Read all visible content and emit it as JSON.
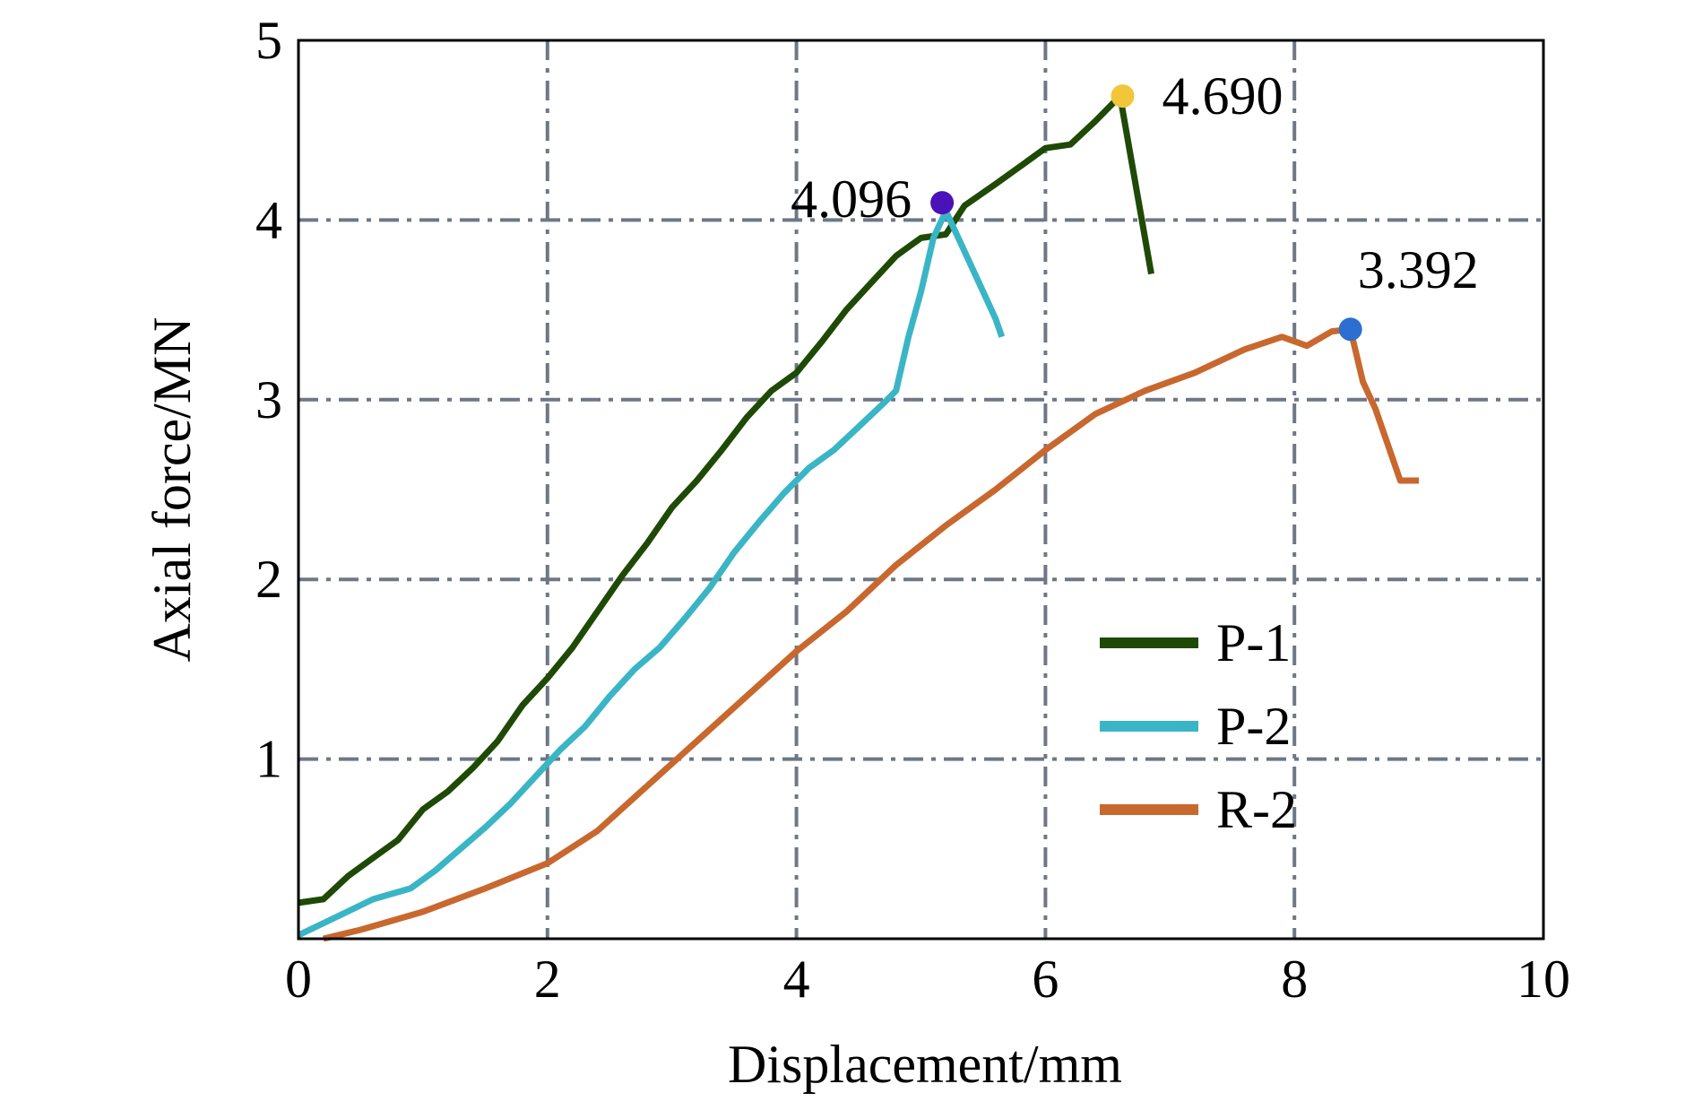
{
  "chart_data": {
    "type": "line",
    "title": "",
    "xlabel": "Displacement/mm",
    "ylabel": "Axial force/MN",
    "xlim": [
      0,
      10
    ],
    "ylim": [
      0,
      5
    ],
    "xticks": [
      0,
      2,
      4,
      6,
      8,
      10
    ],
    "yticks": [
      1,
      2,
      3,
      4,
      5
    ],
    "grid": true,
    "legend_position": "lower-right",
    "series": [
      {
        "name": "P-1",
        "color": "#1e4a05",
        "points": [
          [
            0,
            0.2
          ],
          [
            0.2,
            0.22
          ],
          [
            0.4,
            0.35
          ],
          [
            0.6,
            0.45
          ],
          [
            0.8,
            0.55
          ],
          [
            1.0,
            0.72
          ],
          [
            1.2,
            0.82
          ],
          [
            1.4,
            0.95
          ],
          [
            1.6,
            1.1
          ],
          [
            1.8,
            1.3
          ],
          [
            2.0,
            1.45
          ],
          [
            2.2,
            1.62
          ],
          [
            2.4,
            1.82
          ],
          [
            2.6,
            2.02
          ],
          [
            2.8,
            2.2
          ],
          [
            3.0,
            2.4
          ],
          [
            3.2,
            2.55
          ],
          [
            3.4,
            2.72
          ],
          [
            3.6,
            2.9
          ],
          [
            3.8,
            3.05
          ],
          [
            4.0,
            3.15
          ],
          [
            4.2,
            3.32
          ],
          [
            4.4,
            3.5
          ],
          [
            4.6,
            3.65
          ],
          [
            4.8,
            3.8
          ],
          [
            5.0,
            3.9
          ],
          [
            5.2,
            3.92
          ],
          [
            5.35,
            4.08
          ],
          [
            5.6,
            4.2
          ],
          [
            5.8,
            4.3
          ],
          [
            6.0,
            4.4
          ],
          [
            6.2,
            4.42
          ],
          [
            6.4,
            4.55
          ],
          [
            6.6,
            4.69
          ],
          [
            6.85,
            3.7
          ]
        ]
      },
      {
        "name": "P-2",
        "color": "#3ab5c6",
        "points": [
          [
            0,
            0.02
          ],
          [
            0.3,
            0.12
          ],
          [
            0.6,
            0.22
          ],
          [
            0.9,
            0.28
          ],
          [
            1.1,
            0.38
          ],
          [
            1.3,
            0.5
          ],
          [
            1.5,
            0.62
          ],
          [
            1.7,
            0.75
          ],
          [
            1.9,
            0.9
          ],
          [
            2.1,
            1.05
          ],
          [
            2.3,
            1.18
          ],
          [
            2.5,
            1.35
          ],
          [
            2.7,
            1.5
          ],
          [
            2.9,
            1.62
          ],
          [
            3.1,
            1.78
          ],
          [
            3.3,
            1.95
          ],
          [
            3.5,
            2.15
          ],
          [
            3.7,
            2.32
          ],
          [
            3.9,
            2.48
          ],
          [
            4.1,
            2.62
          ],
          [
            4.3,
            2.72
          ],
          [
            4.5,
            2.85
          ],
          [
            4.7,
            2.98
          ],
          [
            4.8,
            3.05
          ],
          [
            4.9,
            3.35
          ],
          [
            5.0,
            3.6
          ],
          [
            5.1,
            3.9
          ],
          [
            5.2,
            4.05
          ],
          [
            5.3,
            3.9
          ],
          [
            5.4,
            3.75
          ],
          [
            5.5,
            3.6
          ],
          [
            5.6,
            3.45
          ],
          [
            5.65,
            3.35
          ]
        ]
      },
      {
        "name": "R-2",
        "color": "#c8682e",
        "points": [
          [
            0.2,
            0
          ],
          [
            0.5,
            0.05
          ],
          [
            1.0,
            0.15
          ],
          [
            1.5,
            0.28
          ],
          [
            2.0,
            0.42
          ],
          [
            2.4,
            0.6
          ],
          [
            2.8,
            0.85
          ],
          [
            3.2,
            1.1
          ],
          [
            3.6,
            1.35
          ],
          [
            4.0,
            1.6
          ],
          [
            4.4,
            1.82
          ],
          [
            4.8,
            2.08
          ],
          [
            5.2,
            2.3
          ],
          [
            5.6,
            2.5
          ],
          [
            6.0,
            2.72
          ],
          [
            6.4,
            2.92
          ],
          [
            6.8,
            3.05
          ],
          [
            7.2,
            3.15
          ],
          [
            7.6,
            3.28
          ],
          [
            7.9,
            3.35
          ],
          [
            8.1,
            3.3
          ],
          [
            8.3,
            3.38
          ],
          [
            8.45,
            3.392
          ],
          [
            8.55,
            3.1
          ],
          [
            8.65,
            2.95
          ],
          [
            8.75,
            2.75
          ],
          [
            8.85,
            2.55
          ],
          [
            9.0,
            2.55
          ]
        ]
      }
    ],
    "annotations": [
      {
        "label": "4.096",
        "x": 5.17,
        "y": 4.096,
        "color": "#4a12b8"
      },
      {
        "label": "4.690",
        "x": 6.62,
        "y": 4.69,
        "color": "#f2c63a"
      },
      {
        "label": "3.392",
        "x": 8.45,
        "y": 3.392,
        "color": "#2c6fd0"
      }
    ],
    "colors": {
      "grid": "#6f7785",
      "axis": "#000000"
    }
  }
}
